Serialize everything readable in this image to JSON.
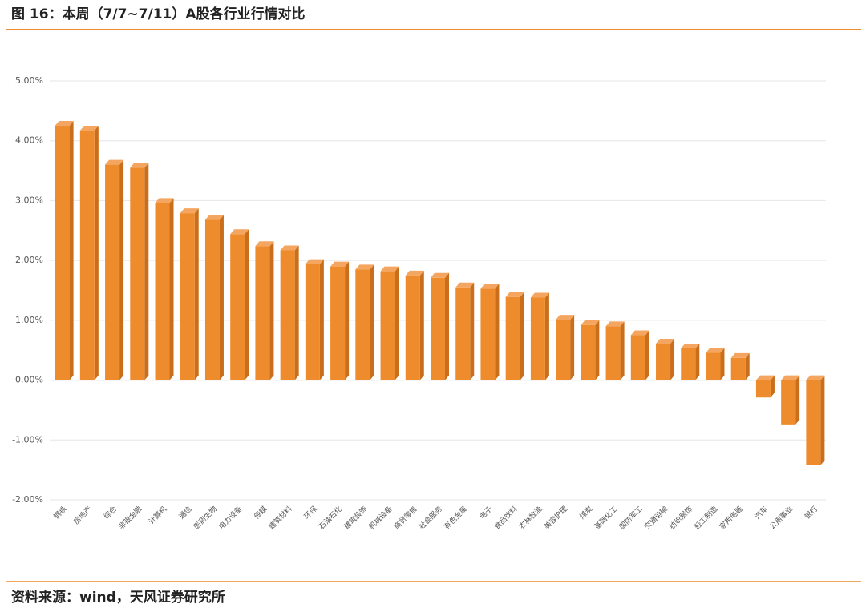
{
  "chart_data": {
    "type": "bar",
    "title": "图 16：本周（7/7~7/11）A股各行业行情对比",
    "source": "资料来源：wind，天风证券研究所",
    "categories": [
      "钢铁",
      "房地产",
      "综合",
      "非银金融",
      "计算机",
      "通信",
      "医药生物",
      "电力设备",
      "传媒",
      "建筑材料",
      "环保",
      "石油石化",
      "建筑装饰",
      "机械设备",
      "商贸零售",
      "社会服务",
      "有色金属",
      "电子",
      "食品饮料",
      "农林牧渔",
      "美容护理",
      "煤炭",
      "基础化工",
      "国防军工",
      "交通运输",
      "纺织服饰",
      "轻工制造",
      "家用电器",
      "汽车",
      "公用事业",
      "银行"
    ],
    "values": [
      4.25,
      4.17,
      3.6,
      3.55,
      2.96,
      2.79,
      2.68,
      2.44,
      2.24,
      2.17,
      1.94,
      1.9,
      1.85,
      1.82,
      1.75,
      1.71,
      1.55,
      1.53,
      1.39,
      1.38,
      1.01,
      0.92,
      0.9,
      0.75,
      0.61,
      0.53,
      0.46,
      0.37,
      -0.29,
      -0.74,
      -1.42
    ],
    "color": "#ee8b2c",
    "ylim": [
      -2,
      5
    ],
    "yticks": [
      {
        "value": -2,
        "label": "-2.00%"
      },
      {
        "value": -1,
        "label": "-1.00%"
      },
      {
        "value": 0,
        "label": "0.00%"
      },
      {
        "value": 1,
        "label": "1.00%"
      },
      {
        "value": 2,
        "label": "2.00%"
      },
      {
        "value": 3,
        "label": "3.00%"
      },
      {
        "value": 4,
        "label": "4.00%"
      },
      {
        "value": 5,
        "label": "5.00%"
      }
    ],
    "grid": true
  }
}
